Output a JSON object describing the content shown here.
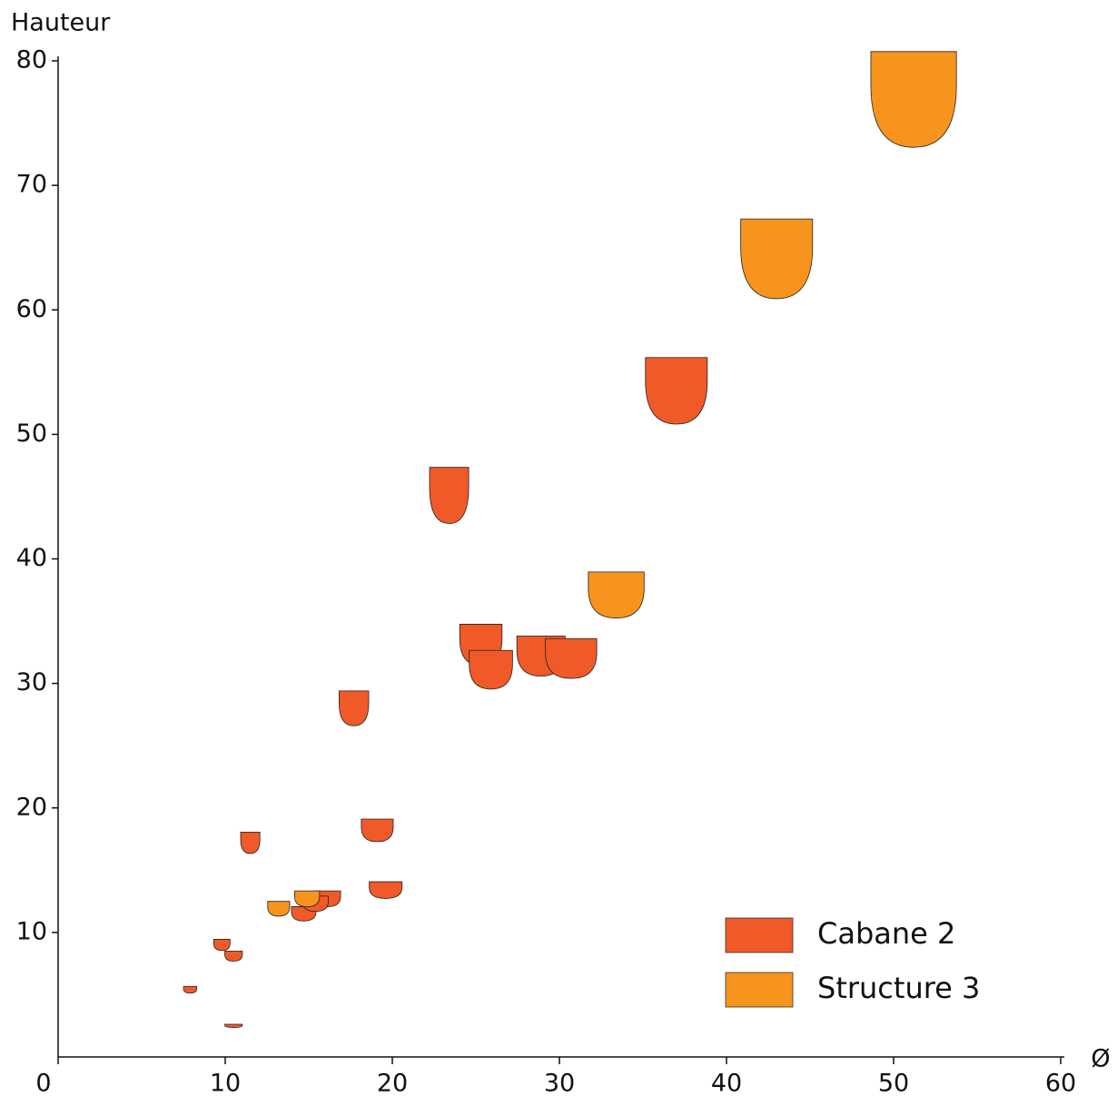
{
  "chart_data": {
    "type": "scatter",
    "x_label": "Ø",
    "y_label": "Hauteur",
    "xlim": [
      0,
      60
    ],
    "ylim": [
      0,
      80
    ],
    "xticks": [
      0,
      10,
      20,
      30,
      40,
      50,
      60
    ],
    "yticks": [
      10,
      20,
      30,
      40,
      50,
      60,
      70,
      80
    ],
    "legend": "lower right",
    "series": [
      {
        "name": "Cabane 2",
        "color": "#f05a28",
        "x": [
          10.5,
          7.9,
          9.8,
          10.5,
          11.5,
          14.7,
          16.1,
          15.4,
          19.6,
          19.1,
          17.7,
          23.4,
          25.3,
          25.9,
          28.9,
          30.7,
          37.0
        ],
        "values": [
          2.5,
          5.4,
          9.0,
          8.1,
          17.2,
          11.5,
          12.7,
          12.3,
          13.4,
          18.2,
          28.0,
          45.1,
          33.1,
          31.1,
          32.2,
          32.0,
          53.5
        ]
      },
      {
        "name": "Structure 3",
        "color": "#f7941d",
        "x": [
          13.2,
          14.9,
          33.4,
          43.0,
          51.2
        ],
        "values": [
          11.9,
          12.7,
          37.1,
          64.1,
          76.9
        ]
      }
    ]
  }
}
